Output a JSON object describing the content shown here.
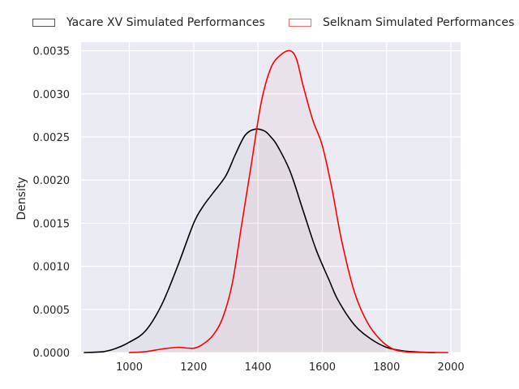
{
  "chart_data": {
    "type": "area",
    "title": "",
    "xlabel": "",
    "ylabel": "Density",
    "xlim": [
      850,
      2030
    ],
    "ylim": [
      0,
      0.0036
    ],
    "x_ticks": [
      "1000",
      "1200",
      "1400",
      "1600",
      "1800",
      "2000"
    ],
    "y_ticks": [
      "0.0000",
      "0.0005",
      "0.0010",
      "0.0015",
      "0.0020",
      "0.0025",
      "0.0030",
      "0.0035"
    ],
    "legend_position": "top-center",
    "grid": true,
    "series": [
      {
        "name": "Yacare XV Simulated Performances",
        "color": "#000000",
        "fill": "#000000",
        "x": [
          860,
          920,
          960,
          1000,
          1050,
          1100,
          1150,
          1200,
          1230,
          1260,
          1300,
          1330,
          1360,
          1390,
          1420,
          1440,
          1460,
          1500,
          1540,
          1580,
          1620,
          1650,
          1700,
          1750,
          1800,
          1850,
          1900,
          1950
        ],
        "y": [
          0.0,
          1e-05,
          5e-05,
          0.00012,
          0.00025,
          0.00055,
          0.001,
          0.0015,
          0.0017,
          0.00185,
          0.00205,
          0.0023,
          0.00252,
          0.00259,
          0.00257,
          0.0025,
          0.0024,
          0.0021,
          0.00165,
          0.0012,
          0.00085,
          0.0006,
          0.00032,
          0.00016,
          6e-05,
          2e-05,
          5e-06,
          0.0
        ]
      },
      {
        "name": "Selknam Simulated Performances",
        "color": "#ff0000",
        "fill": "#ff0000",
        "x": [
          1000,
          1050,
          1100,
          1150,
          1200,
          1230,
          1260,
          1290,
          1320,
          1350,
          1380,
          1410,
          1440,
          1470,
          1500,
          1520,
          1540,
          1570,
          1600,
          1630,
          1660,
          1700,
          1740,
          1780,
          1820,
          1860,
          1900,
          1990
        ],
        "y": [
          0.0,
          1e-05,
          4e-05,
          6e-05,
          5e-05,
          0.0001,
          0.0002,
          0.0004,
          0.0008,
          0.0015,
          0.0022,
          0.0029,
          0.0033,
          0.00345,
          0.0035,
          0.0034,
          0.0031,
          0.0027,
          0.0024,
          0.0019,
          0.0013,
          0.0007,
          0.00035,
          0.00015,
          4e-05,
          8e-06,
          2e-06,
          0.0
        ]
      }
    ]
  }
}
